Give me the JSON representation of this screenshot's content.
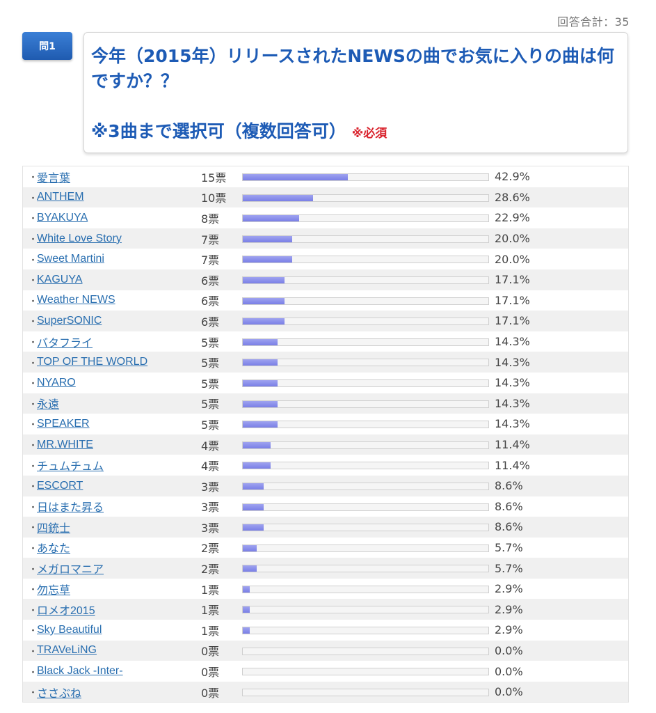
{
  "summary": {
    "total_label": "回答合計：35"
  },
  "question": {
    "badge": "問1",
    "text": "今年（2015年）リリースされたNEWSの曲でお気に入りの曲は何ですか？？",
    "note": "※3曲まで選択可（複数回答可）",
    "required": "※必須"
  },
  "results": [
    {
      "name": "愛言葉",
      "votes": "15票",
      "pct": "42.9%",
      "fraction": 0.429
    },
    {
      "name": "ANTHEM",
      "votes": "10票",
      "pct": "28.6%",
      "fraction": 0.286
    },
    {
      "name": "BYAKUYA",
      "votes": "8票",
      "pct": "22.9%",
      "fraction": 0.229
    },
    {
      "name": "White Love Story",
      "votes": "7票",
      "pct": "20.0%",
      "fraction": 0.2
    },
    {
      "name": "Sweet Martini",
      "votes": "7票",
      "pct": "20.0%",
      "fraction": 0.2
    },
    {
      "name": "KAGUYA",
      "votes": "6票",
      "pct": "17.1%",
      "fraction": 0.171
    },
    {
      "name": "Weather NEWS",
      "votes": "6票",
      "pct": "17.1%",
      "fraction": 0.171
    },
    {
      "name": "SuperSONIC",
      "votes": "6票",
      "pct": "17.1%",
      "fraction": 0.171
    },
    {
      "name": "バタフライ",
      "votes": "5票",
      "pct": "14.3%",
      "fraction": 0.143
    },
    {
      "name": "TOP OF THE WORLD",
      "votes": "5票",
      "pct": "14.3%",
      "fraction": 0.143
    },
    {
      "name": "NYARO",
      "votes": "5票",
      "pct": "14.3%",
      "fraction": 0.143
    },
    {
      "name": "永遠",
      "votes": "5票",
      "pct": "14.3%",
      "fraction": 0.143
    },
    {
      "name": "SPEAKER",
      "votes": "5票",
      "pct": "14.3%",
      "fraction": 0.143
    },
    {
      "name": "MR.WHITE",
      "votes": "4票",
      "pct": "11.4%",
      "fraction": 0.114
    },
    {
      "name": "チュムチュム",
      "votes": "4票",
      "pct": "11.4%",
      "fraction": 0.114
    },
    {
      "name": "ESCORT",
      "votes": "3票",
      "pct": "8.6%",
      "fraction": 0.086
    },
    {
      "name": "日はまた昇る",
      "votes": "3票",
      "pct": "8.6%",
      "fraction": 0.086
    },
    {
      "name": "四銃士",
      "votes": "3票",
      "pct": "8.6%",
      "fraction": 0.086
    },
    {
      "name": "あなた",
      "votes": "2票",
      "pct": "5.7%",
      "fraction": 0.057
    },
    {
      "name": "メガロマニア",
      "votes": "2票",
      "pct": "5.7%",
      "fraction": 0.057
    },
    {
      "name": "勿忘草",
      "votes": "1票",
      "pct": "2.9%",
      "fraction": 0.029
    },
    {
      "name": "ロメオ2015",
      "votes": "1票",
      "pct": "2.9%",
      "fraction": 0.029
    },
    {
      "name": "Sky Beautiful",
      "votes": "1票",
      "pct": "2.9%",
      "fraction": 0.029
    },
    {
      "name": "TRAVeLiNG",
      "votes": "0票",
      "pct": "0.0%",
      "fraction": 0.0
    },
    {
      "name": "Black Jack -Inter-",
      "votes": "0票",
      "pct": "0.0%",
      "fraction": 0.0
    },
    {
      "name": "ささぶね",
      "votes": "0票",
      "pct": "0.0%",
      "fraction": 0.0
    }
  ]
}
